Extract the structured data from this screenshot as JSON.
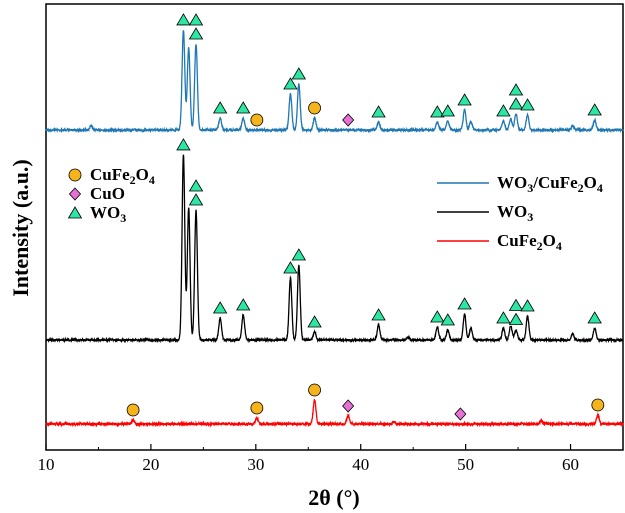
{
  "chart_data": {
    "type": "line",
    "xlabel": "2θ (°)",
    "ylabel": "Intensity (a.u.)",
    "xlim": [
      10,
      65
    ],
    "x_ticks": [
      10,
      20,
      30,
      40,
      50,
      60
    ],
    "y_ticks_shown": false,
    "grid": false,
    "series": [
      {
        "name": "WO3/CuFe2O4",
        "color": "#1f77b4",
        "baseline": 130,
        "noise": 1.0,
        "peaks": [
          {
            "x": 14.3,
            "h": 4
          },
          {
            "x": 23.1,
            "h": 100
          },
          {
            "x": 23.6,
            "h": 82
          },
          {
            "x": 24.3,
            "h": 86
          },
          {
            "x": 26.6,
            "h": 12
          },
          {
            "x": 28.8,
            "h": 12
          },
          {
            "x": 33.3,
            "h": 36
          },
          {
            "x": 34.1,
            "h": 46
          },
          {
            "x": 35.6,
            "h": 12
          },
          {
            "x": 41.7,
            "h": 8
          },
          {
            "x": 47.3,
            "h": 8
          },
          {
            "x": 48.3,
            "h": 9
          },
          {
            "x": 49.9,
            "h": 20
          },
          {
            "x": 50.5,
            "h": 8
          },
          {
            "x": 53.6,
            "h": 9
          },
          {
            "x": 54.3,
            "h": 11
          },
          {
            "x": 54.8,
            "h": 16
          },
          {
            "x": 55.9,
            "h": 15
          },
          {
            "x": 60.2,
            "h": 4
          },
          {
            "x": 62.3,
            "h": 10
          }
        ]
      },
      {
        "name": "WO3",
        "color": "#000000",
        "baseline": 340,
        "noise": 1.0,
        "peaks": [
          {
            "x": 23.1,
            "h": 185
          },
          {
            "x": 23.6,
            "h": 132
          },
          {
            "x": 24.3,
            "h": 130
          },
          {
            "x": 26.6,
            "h": 22
          },
          {
            "x": 28.8,
            "h": 25
          },
          {
            "x": 33.3,
            "h": 62
          },
          {
            "x": 34.1,
            "h": 75
          },
          {
            "x": 35.6,
            "h": 8
          },
          {
            "x": 41.7,
            "h": 15
          },
          {
            "x": 44.5,
            "h": 3
          },
          {
            "x": 47.3,
            "h": 13
          },
          {
            "x": 48.3,
            "h": 10
          },
          {
            "x": 49.9,
            "h": 26
          },
          {
            "x": 50.5,
            "h": 12
          },
          {
            "x": 53.6,
            "h": 12
          },
          {
            "x": 54.3,
            "h": 14
          },
          {
            "x": 54.8,
            "h": 10
          },
          {
            "x": 55.9,
            "h": 24
          },
          {
            "x": 60.2,
            "h": 6
          },
          {
            "x": 62.3,
            "h": 12
          }
        ]
      },
      {
        "name": "CuFe2O4",
        "color": "#ff0000",
        "baseline": 424,
        "noise": 1.2,
        "peaks": [
          {
            "x": 18.3,
            "h": 4
          },
          {
            "x": 30.1,
            "h": 6
          },
          {
            "x": 35.6,
            "h": 24
          },
          {
            "x": 38.8,
            "h": 8
          },
          {
            "x": 43.2,
            "h": 2
          },
          {
            "x": 57.2,
            "h": 3
          },
          {
            "x": 62.6,
            "h": 9
          }
        ]
      }
    ],
    "legend_lines": {
      "position": "right",
      "entries": [
        {
          "base": "WO",
          "sub1": "3",
          "mid": "/CuFe",
          "sub2": "2",
          "mid2": "O",
          "sub3": "4",
          "color": "#1f77b4"
        },
        {
          "base": "WO",
          "sub1": "3",
          "mid": "",
          "sub2": "",
          "mid2": "",
          "sub3": "",
          "color": "#000000"
        },
        {
          "base": "CuFe",
          "sub1": "2",
          "mid": "O",
          "sub2": "4",
          "mid2": "",
          "sub3": "",
          "color": "#ff0000"
        }
      ]
    },
    "legend_markers": {
      "position": "left",
      "entries": [
        {
          "shape": "circle",
          "color": "#f5b41b",
          "base": "CuFe",
          "sub1": "2",
          "mid": "O",
          "sub2": "4"
        },
        {
          "shape": "diamond",
          "color": "#e572d4",
          "base": "CuO",
          "sub1": "",
          "mid": "",
          "sub2": ""
        },
        {
          "shape": "triangle",
          "color": "#2ee6a4",
          "base": "WO",
          "sub1": "3",
          "mid": "",
          "sub2": ""
        }
      ]
    },
    "markers": [
      {
        "series": "WO3/CuFe2O4",
        "shape": "triangle",
        "x": 23.1
      },
      {
        "series": "WO3/CuFe2O4",
        "shape": "triangle",
        "x": 24.3
      },
      {
        "series": "WO3/CuFe2O4",
        "shape": "triangle",
        "x": 24.3,
        "stack": 1
      },
      {
        "series": "WO3/CuFe2O4",
        "shape": "triangle",
        "x": 26.6
      },
      {
        "series": "WO3/CuFe2O4",
        "shape": "triangle",
        "x": 28.8
      },
      {
        "series": "WO3/CuFe2O4",
        "shape": "circle",
        "x": 30.1
      },
      {
        "series": "WO3/CuFe2O4",
        "shape": "triangle",
        "x": 33.3
      },
      {
        "series": "WO3/CuFe2O4",
        "shape": "triangle",
        "x": 34.1
      },
      {
        "series": "WO3/CuFe2O4",
        "shape": "circle",
        "x": 35.6
      },
      {
        "series": "WO3/CuFe2O4",
        "shape": "diamond",
        "x": 38.8
      },
      {
        "series": "WO3/CuFe2O4",
        "shape": "triangle",
        "x": 41.7
      },
      {
        "series": "WO3/CuFe2O4",
        "shape": "triangle",
        "x": 47.3
      },
      {
        "series": "WO3/CuFe2O4",
        "shape": "triangle",
        "x": 48.3
      },
      {
        "series": "WO3/CuFe2O4",
        "shape": "triangle",
        "x": 49.9
      },
      {
        "series": "WO3/CuFe2O4",
        "shape": "triangle",
        "x": 53.6
      },
      {
        "series": "WO3/CuFe2O4",
        "shape": "triangle",
        "x": 54.8
      },
      {
        "series": "WO3/CuFe2O4",
        "shape": "triangle",
        "x": 54.8,
        "stack": 1
      },
      {
        "series": "WO3/CuFe2O4",
        "shape": "triangle",
        "x": 55.9
      },
      {
        "series": "WO3/CuFe2O4",
        "shape": "triangle",
        "x": 62.3
      },
      {
        "series": "WO3",
        "shape": "triangle",
        "x": 23.1
      },
      {
        "series": "WO3",
        "shape": "triangle",
        "x": 24.3
      },
      {
        "series": "WO3",
        "shape": "triangle",
        "x": 24.3,
        "stack": 1
      },
      {
        "series": "WO3",
        "shape": "triangle",
        "x": 26.6
      },
      {
        "series": "WO3",
        "shape": "triangle",
        "x": 28.8
      },
      {
        "series": "WO3",
        "shape": "triangle",
        "x": 33.3
      },
      {
        "series": "WO3",
        "shape": "triangle",
        "x": 34.1
      },
      {
        "series": "WO3",
        "shape": "triangle",
        "x": 35.6
      },
      {
        "series": "WO3",
        "shape": "triangle",
        "x": 41.7
      },
      {
        "series": "WO3",
        "shape": "triangle",
        "x": 47.3
      },
      {
        "series": "WO3",
        "shape": "triangle",
        "x": 48.3
      },
      {
        "series": "WO3",
        "shape": "triangle",
        "x": 49.9
      },
      {
        "series": "WO3",
        "shape": "triangle",
        "x": 53.6
      },
      {
        "series": "WO3",
        "shape": "triangle",
        "x": 54.8
      },
      {
        "series": "WO3",
        "shape": "triangle",
        "x": 54.8,
        "stack": 1
      },
      {
        "series": "WO3",
        "shape": "triangle",
        "x": 55.9
      },
      {
        "series": "WO3",
        "shape": "triangle",
        "x": 62.3
      },
      {
        "series": "CuFe2O4",
        "shape": "circle",
        "x": 18.3
      },
      {
        "series": "CuFe2O4",
        "shape": "circle",
        "x": 30.1
      },
      {
        "series": "CuFe2O4",
        "shape": "circle",
        "x": 35.6
      },
      {
        "series": "CuFe2O4",
        "shape": "diamond",
        "x": 38.8
      },
      {
        "series": "CuFe2O4",
        "shape": "diamond",
        "x": 49.5
      },
      {
        "series": "CuFe2O4",
        "shape": "circle",
        "x": 62.6
      }
    ]
  }
}
